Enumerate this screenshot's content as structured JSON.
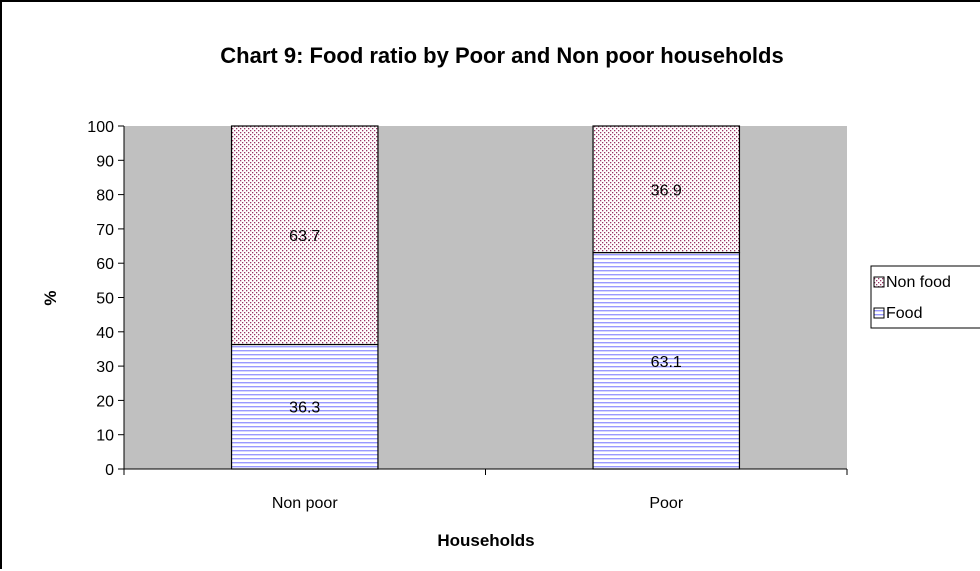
{
  "chart_data": {
    "type": "bar",
    "stacked": true,
    "title": "Chart 9: Food ratio by Poor and Non poor households",
    "xlabel": "Households",
    "ylabel": "%",
    "categories": [
      "Non poor",
      "Poor"
    ],
    "series": [
      {
        "name": "Food",
        "values": [
          36.3,
          63.1
        ],
        "color": "#9999ff",
        "pattern": "horizontal-lines"
      },
      {
        "name": "Non food",
        "values": [
          63.7,
          36.9
        ],
        "color": "#993366",
        "pattern": "dots"
      }
    ],
    "ylim": [
      0,
      100
    ],
    "yticks": [
      0,
      10,
      20,
      30,
      40,
      50,
      60,
      70,
      80,
      90,
      100
    ],
    "legend": {
      "position": "right",
      "order": [
        "Non food",
        "Food"
      ]
    },
    "grid": false,
    "plot_background": "#c0c0c0"
  }
}
